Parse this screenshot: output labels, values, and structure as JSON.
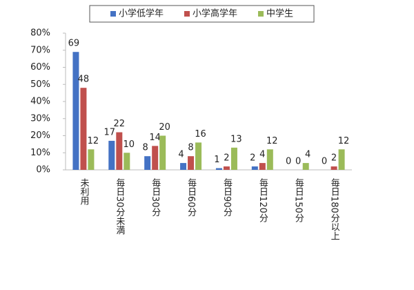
{
  "chart_data": {
    "type": "bar",
    "categories": [
      "未利用",
      "毎日30分未満",
      "毎日30分",
      "毎日60分",
      "毎日90分",
      "毎日120分",
      "毎日150分",
      "毎日180分以上"
    ],
    "series": [
      {
        "name": "小学低学年",
        "color": "#4472c4",
        "values": [
          69,
          17,
          8,
          4,
          1,
          2,
          0,
          0
        ]
      },
      {
        "name": "小学高学年",
        "color": "#c0504d",
        "values": [
          48,
          22,
          14,
          8,
          2,
          4,
          0,
          2
        ]
      },
      {
        "name": "中学生",
        "color": "#9bbb59",
        "values": [
          12,
          10,
          20,
          16,
          13,
          12,
          4,
          12
        ]
      }
    ],
    "ylim": [
      0,
      80
    ],
    "yticks": [
      {
        "value": 0,
        "label": "0%"
      },
      {
        "value": 10,
        "label": "10%"
      },
      {
        "value": 20,
        "label": "20%"
      },
      {
        "value": 30,
        "label": "30%"
      },
      {
        "value": 40,
        "label": "40%"
      },
      {
        "value": 50,
        "label": "50%"
      },
      {
        "value": 60,
        "label": "60%"
      },
      {
        "value": 70,
        "label": "70%"
      },
      {
        "value": 80,
        "label": "80%"
      }
    ],
    "legend": "top",
    "grid": false
  }
}
